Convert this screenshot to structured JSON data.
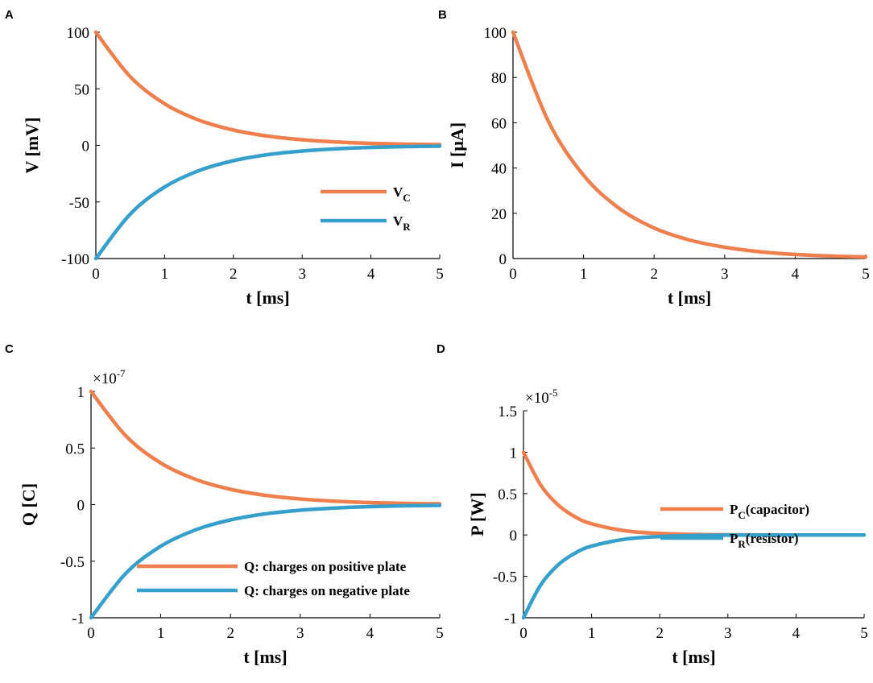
{
  "colors": {
    "orange": "#F07F4E",
    "blue": "#34A0CB"
  },
  "chart_data": [
    {
      "panel": "A",
      "type": "line",
      "xlabel": "t [ms]",
      "ylabel": "V [mV]",
      "xlim": [
        0,
        5
      ],
      "ylim": [
        -100,
        100
      ],
      "xticks": [
        0,
        1,
        2,
        3,
        4,
        5
      ],
      "xtick_labels": [
        "0",
        "1",
        "2",
        "3",
        "4",
        "5"
      ],
      "yticks": [
        -100,
        -50,
        0,
        50,
        100
      ],
      "ytick_labels": [
        "-100",
        "-50",
        "0",
        "50",
        "100"
      ],
      "legend_position": "lower-right",
      "series": [
        {
          "name": "V",
          "sub": "C",
          "color": "#F07F4E",
          "x": [
            0,
            0.5,
            1,
            1.5,
            2,
            2.5,
            3,
            3.5,
            4,
            4.5,
            5
          ],
          "y": [
            100,
            60.7,
            36.8,
            22.3,
            13.5,
            8.2,
            5.0,
            3.0,
            1.8,
            1.1,
            0.7
          ]
        },
        {
          "name": "V",
          "sub": "R",
          "color": "#34A0CB",
          "x": [
            0,
            0.5,
            1,
            1.5,
            2,
            2.5,
            3,
            3.5,
            4,
            4.5,
            5
          ],
          "y": [
            -100,
            -60.7,
            -36.8,
            -22.3,
            -13.5,
            -8.2,
            -5.0,
            -3.0,
            -1.8,
            -1.1,
            -0.7
          ]
        }
      ]
    },
    {
      "panel": "B",
      "type": "line",
      "xlabel": "t [ms]",
      "ylabel": "I [μA]",
      "xlim": [
        0,
        5
      ],
      "ylim": [
        0,
        100
      ],
      "xticks": [
        0,
        1,
        2,
        3,
        4,
        5
      ],
      "xtick_labels": [
        "0",
        "1",
        "2",
        "3",
        "4",
        "5"
      ],
      "yticks": [
        0,
        20,
        40,
        60,
        80,
        100
      ],
      "ytick_labels": [
        "0",
        "20",
        "40",
        "60",
        "80",
        "100"
      ],
      "series": [
        {
          "color": "#F07F4E",
          "x": [
            0,
            0.5,
            1,
            1.5,
            2,
            2.5,
            3,
            3.5,
            4,
            4.5,
            5
          ],
          "y": [
            100,
            60.7,
            36.8,
            22.3,
            13.5,
            8.2,
            5.0,
            3.0,
            1.8,
            1.1,
            0.7
          ]
        }
      ]
    },
    {
      "panel": "C",
      "type": "line",
      "xlabel": "t [ms]",
      "ylabel": "Q [C]",
      "multiplier_base": "×10",
      "multiplier_exp": "-7",
      "xlim": [
        0,
        5
      ],
      "ylim": [
        -1,
        1
      ],
      "xticks": [
        0,
        1,
        2,
        3,
        4,
        5
      ],
      "xtick_labels": [
        "0",
        "1",
        "2",
        "3",
        "4",
        "5"
      ],
      "yticks": [
        -1,
        -0.5,
        0,
        0.5,
        1
      ],
      "ytick_labels": [
        "-1",
        "-0.5",
        "0",
        "0.5",
        "1"
      ],
      "legend_position": "lower-right",
      "series": [
        {
          "name": "Q: charges on positive plate",
          "color": "#F07F4E",
          "x": [
            0,
            0.5,
            1,
            1.5,
            2,
            2.5,
            3,
            3.5,
            4,
            4.5,
            5
          ],
          "y": [
            1,
            0.607,
            0.368,
            0.223,
            0.135,
            0.082,
            0.05,
            0.03,
            0.018,
            0.011,
            0.007
          ]
        },
        {
          "name": "Q: charges on negative plate",
          "color": "#34A0CB",
          "x": [
            0,
            0.5,
            1,
            1.5,
            2,
            2.5,
            3,
            3.5,
            4,
            4.5,
            5
          ],
          "y": [
            -1,
            -0.607,
            -0.368,
            -0.223,
            -0.135,
            -0.082,
            -0.05,
            -0.03,
            -0.018,
            -0.011,
            -0.007
          ]
        }
      ]
    },
    {
      "panel": "D",
      "type": "line",
      "xlabel": "t [ms]",
      "ylabel": "P [W]",
      "multiplier_base": "×10",
      "multiplier_exp": "-5",
      "xlim": [
        0,
        5
      ],
      "ylim": [
        -1,
        1.5
      ],
      "xticks": [
        0,
        1,
        2,
        3,
        4,
        5
      ],
      "xtick_labels": [
        "0",
        "1",
        "2",
        "3",
        "4",
        "5"
      ],
      "yticks": [
        -1,
        -0.5,
        0,
        0.5,
        1,
        1.5
      ],
      "ytick_labels": [
        "-1",
        "-0.5",
        "0",
        "0.5",
        "1",
        "1.5"
      ],
      "legend_position": "lower-right",
      "series": [
        {
          "name": "P",
          "sub": "C",
          "suffix": "(capacitor)",
          "color": "#F07F4E",
          "x": [
            0,
            0.25,
            0.5,
            0.75,
            1,
            1.5,
            2,
            2.5,
            3,
            4,
            5
          ],
          "y": [
            1,
            0.607,
            0.368,
            0.223,
            0.135,
            0.05,
            0.018,
            0.007,
            0.002,
            0.0003,
            5e-05
          ]
        },
        {
          "name": "P",
          "sub": "R",
          "suffix": "(resistor)",
          "color": "#34A0CB",
          "x": [
            0,
            0.25,
            0.5,
            0.75,
            1,
            1.5,
            2,
            2.5,
            3,
            4,
            5
          ],
          "y": [
            -1,
            -0.607,
            -0.368,
            -0.223,
            -0.135,
            -0.05,
            -0.018,
            -0.007,
            -0.002,
            -0.0003,
            -5e-05
          ]
        }
      ]
    }
  ]
}
